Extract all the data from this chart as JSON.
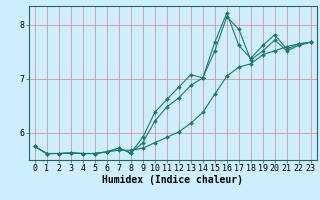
{
  "xlabel": "Humidex (Indice chaleur)",
  "bg_color": "#cceeff",
  "grid_color": "#e08080",
  "line_color": "#1a7a6a",
  "xlim": [
    -0.5,
    23.5
  ],
  "ylim": [
    5.5,
    8.35
  ],
  "xticks": [
    0,
    1,
    2,
    3,
    4,
    5,
    6,
    7,
    8,
    9,
    10,
    11,
    12,
    13,
    14,
    15,
    16,
    17,
    18,
    19,
    20,
    21,
    22,
    23
  ],
  "yticks": [
    6,
    7,
    8
  ],
  "line1_x": [
    0,
    1,
    2,
    3,
    4,
    5,
    6,
    7,
    8,
    9,
    10,
    11,
    12,
    13,
    14,
    15,
    16,
    17,
    18,
    19,
    20,
    21,
    22,
    23
  ],
  "line1_y": [
    5.75,
    5.62,
    5.62,
    5.63,
    5.62,
    5.62,
    5.65,
    5.68,
    5.68,
    5.72,
    5.82,
    5.92,
    6.02,
    6.18,
    6.38,
    6.72,
    7.05,
    7.22,
    7.28,
    7.45,
    7.52,
    7.6,
    7.65,
    7.68
  ],
  "line2_x": [
    0,
    1,
    2,
    3,
    4,
    5,
    6,
    7,
    8,
    9,
    10,
    11,
    12,
    13,
    14,
    15,
    16,
    17,
    18,
    19,
    20,
    21,
    22,
    23
  ],
  "line2_y": [
    5.75,
    5.62,
    5.62,
    5.63,
    5.62,
    5.62,
    5.65,
    5.72,
    5.63,
    5.82,
    6.22,
    6.48,
    6.65,
    6.88,
    7.02,
    7.52,
    8.15,
    7.92,
    7.35,
    7.52,
    7.72,
    7.52,
    7.62,
    7.68
  ],
  "line3_x": [
    0,
    1,
    2,
    3,
    4,
    5,
    6,
    7,
    8,
    9,
    10,
    11,
    12,
    13,
    14,
    15,
    16,
    17,
    18,
    19,
    20,
    21,
    22,
    23
  ],
  "line3_y": [
    5.75,
    5.62,
    5.62,
    5.63,
    5.62,
    5.62,
    5.65,
    5.72,
    5.63,
    5.92,
    6.38,
    6.62,
    6.85,
    7.08,
    7.02,
    7.68,
    8.22,
    7.62,
    7.38,
    7.62,
    7.82,
    7.55,
    7.65,
    7.68
  ],
  "marker": "D",
  "markersize": 2.0,
  "linewidth": 0.8,
  "xlabel_fontsize": 7.0,
  "tick_fontsize": 6.0
}
